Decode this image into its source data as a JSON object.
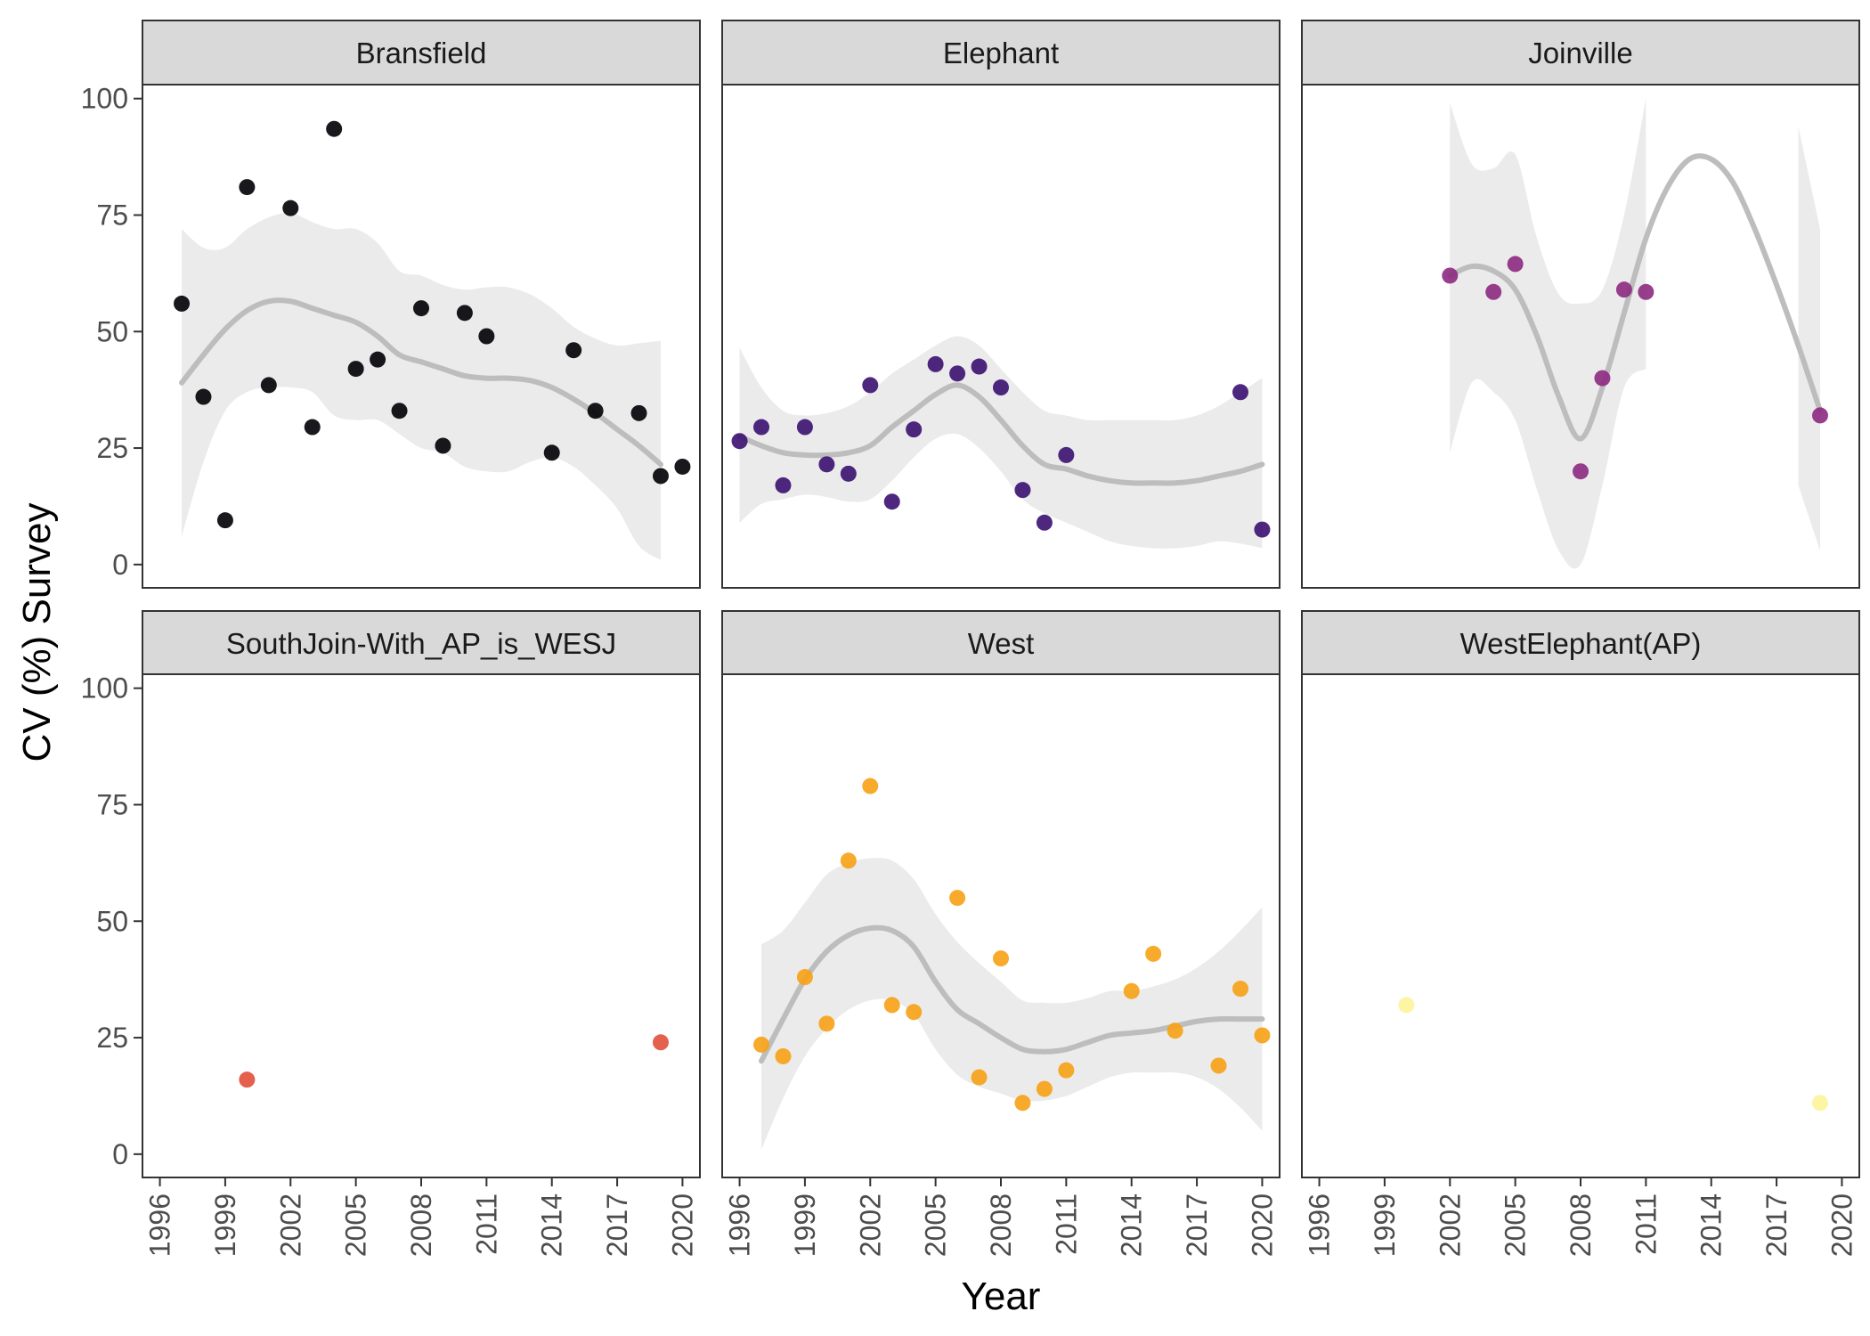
{
  "chart_data": {
    "type": "scatter",
    "xlabel": "Year",
    "ylabel": "CV (%) Survey",
    "xlim": [
      1995.2,
      2020.8
    ],
    "ylim": [
      -5,
      103
    ],
    "x_ticks": [
      1996,
      1999,
      2002,
      2005,
      2008,
      2011,
      2014,
      2017,
      2020
    ],
    "y_ticks": [
      0,
      25,
      50,
      75,
      100
    ],
    "grid": false,
    "legend": "none",
    "smooth_color": "#bdbdbd",
    "band_color": "#ebebeb",
    "panels": [
      {
        "name": "Bransfield",
        "color": "#000004",
        "points": [
          {
            "x": 1997,
            "y": 56,
            "color": "#000004"
          },
          {
            "x": 1998,
            "y": 36,
            "color": "#000004"
          },
          {
            "x": 1999,
            "y": 9.5,
            "color": "#000004"
          },
          {
            "x": 2000,
            "y": 81,
            "color": "#000004"
          },
          {
            "x": 2001,
            "y": 38.5,
            "color": "#000004"
          },
          {
            "x": 2002,
            "y": 76.5,
            "color": "#000004"
          },
          {
            "x": 2003,
            "y": 29.5,
            "color": "#000004"
          },
          {
            "x": 2004,
            "y": 93.5,
            "color": "#000004"
          },
          {
            "x": 2005,
            "y": 42,
            "color": "#000004"
          },
          {
            "x": 2006,
            "y": 44,
            "color": "#000004"
          },
          {
            "x": 2007,
            "y": 33,
            "color": "#000004"
          },
          {
            "x": 2008,
            "y": 55,
            "color": "#000004"
          },
          {
            "x": 2009,
            "y": 25.5,
            "color": "#000004"
          },
          {
            "x": 2010,
            "y": 54,
            "color": "#000004"
          },
          {
            "x": 2011,
            "y": 49,
            "color": "#000004"
          },
          {
            "x": 2014,
            "y": 24,
            "color": "#000004"
          },
          {
            "x": 2015,
            "y": 46,
            "color": "#000004"
          },
          {
            "x": 2016,
            "y": 33,
            "color": "#000004"
          },
          {
            "x": 2018,
            "y": 32.5,
            "color": "#000004"
          },
          {
            "x": 2019,
            "y": 19,
            "color": "#000004"
          },
          {
            "x": 2020,
            "y": 21,
            "color": "#000004"
          }
        ],
        "smooth": [
          {
            "x": 1997,
            "y": 39,
            "lo": 6,
            "hi": 72
          },
          {
            "x": 1998,
            "y": 45,
            "lo": 22,
            "hi": 68
          },
          {
            "x": 1999,
            "y": 50.5,
            "lo": 33,
            "hi": 68
          },
          {
            "x": 2000,
            "y": 54.5,
            "lo": 37,
            "hi": 72
          },
          {
            "x": 2001,
            "y": 56.5,
            "lo": 38,
            "hi": 74.5
          },
          {
            "x": 2002,
            "y": 56.5,
            "lo": 38,
            "hi": 75.5
          },
          {
            "x": 2003,
            "y": 55,
            "lo": 37,
            "hi": 73.5
          },
          {
            "x": 2004,
            "y": 53.5,
            "lo": 32,
            "hi": 72
          },
          {
            "x": 2005,
            "y": 52,
            "lo": 31,
            "hi": 72
          },
          {
            "x": 2006,
            "y": 49,
            "lo": 31,
            "hi": 69
          },
          {
            "x": 2007,
            "y": 45,
            "lo": 28,
            "hi": 63
          },
          {
            "x": 2008,
            "y": 43.5,
            "lo": 25,
            "hi": 62
          },
          {
            "x": 2009,
            "y": 42,
            "lo": 24,
            "hi": 60
          },
          {
            "x": 2010,
            "y": 40.5,
            "lo": 21,
            "hi": 59
          },
          {
            "x": 2011,
            "y": 40,
            "lo": 20,
            "hi": 59.5
          },
          {
            "x": 2012,
            "y": 40,
            "lo": 20,
            "hi": 59.5
          },
          {
            "x": 2013,
            "y": 39.5,
            "lo": 22,
            "hi": 58
          },
          {
            "x": 2014,
            "y": 38,
            "lo": 23,
            "hi": 55
          },
          {
            "x": 2015,
            "y": 35.5,
            "lo": 21,
            "hi": 51
          },
          {
            "x": 2016,
            "y": 32.5,
            "lo": 17,
            "hi": 48.5
          },
          {
            "x": 2017,
            "y": 29,
            "lo": 12,
            "hi": 47
          },
          {
            "x": 2018,
            "y": 25.5,
            "lo": 4,
            "hi": 47.5
          },
          {
            "x": 2019,
            "y": 21.5,
            "lo": 1,
            "hi": 48
          }
        ]
      },
      {
        "name": "Elephant",
        "color": "#3b0f70",
        "points": [
          {
            "x": 1996,
            "y": 26.5,
            "color": "#3b0f70"
          },
          {
            "x": 1997,
            "y": 29.5,
            "color": "#3b0f70"
          },
          {
            "x": 1998,
            "y": 17,
            "color": "#3b0f70"
          },
          {
            "x": 1999,
            "y": 29.5,
            "color": "#3b0f70"
          },
          {
            "x": 2000,
            "y": 21.5,
            "color": "#3b0f70"
          },
          {
            "x": 2001,
            "y": 19.5,
            "color": "#3b0f70"
          },
          {
            "x": 2002,
            "y": 38.5,
            "color": "#3b0f70"
          },
          {
            "x": 2003,
            "y": 13.5,
            "color": "#3b0f70"
          },
          {
            "x": 2004,
            "y": 29,
            "color": "#3b0f70"
          },
          {
            "x": 2005,
            "y": 43,
            "color": "#3b0f70"
          },
          {
            "x": 2006,
            "y": 41,
            "color": "#3b0f70"
          },
          {
            "x": 2007,
            "y": 42.5,
            "color": "#3b0f70"
          },
          {
            "x": 2008,
            "y": 38,
            "color": "#3b0f70"
          },
          {
            "x": 2009,
            "y": 16,
            "color": "#3b0f70"
          },
          {
            "x": 2010,
            "y": 9,
            "color": "#3b0f70"
          },
          {
            "x": 2011,
            "y": 23.5,
            "color": "#3b0f70"
          },
          {
            "x": 2019,
            "y": 37,
            "color": "#3b0f70"
          },
          {
            "x": 2020,
            "y": 7.5,
            "color": "#3b0f70"
          }
        ],
        "smooth": [
          {
            "x": 1996,
            "y": 27.5,
            "lo": 9,
            "hi": 46.5
          },
          {
            "x": 1997,
            "y": 25.5,
            "lo": 13,
            "hi": 38
          },
          {
            "x": 1998,
            "y": 24,
            "lo": 14,
            "hi": 33
          },
          {
            "x": 1999,
            "y": 23.5,
            "lo": 15,
            "hi": 32
          },
          {
            "x": 2000,
            "y": 23.5,
            "lo": 14.5,
            "hi": 32.5
          },
          {
            "x": 2001,
            "y": 24,
            "lo": 13.5,
            "hi": 34
          },
          {
            "x": 2002,
            "y": 25.5,
            "lo": 14,
            "hi": 37
          },
          {
            "x": 2003,
            "y": 29.5,
            "lo": 18,
            "hi": 41
          },
          {
            "x": 2004,
            "y": 33,
            "lo": 23,
            "hi": 44
          },
          {
            "x": 2005,
            "y": 36.5,
            "lo": 27,
            "hi": 47
          },
          {
            "x": 2006,
            "y": 38.5,
            "lo": 28,
            "hi": 49
          },
          {
            "x": 2007,
            "y": 36,
            "lo": 25,
            "hi": 47
          },
          {
            "x": 2008,
            "y": 31,
            "lo": 20,
            "hi": 42
          },
          {
            "x": 2009,
            "y": 25.5,
            "lo": 14,
            "hi": 37
          },
          {
            "x": 2010,
            "y": 21.5,
            "lo": 11,
            "hi": 33
          },
          {
            "x": 2011,
            "y": 20.5,
            "lo": 9,
            "hi": 32
          },
          {
            "x": 2012,
            "y": 19,
            "lo": 7,
            "hi": 31
          },
          {
            "x": 2013,
            "y": 18,
            "lo": 5,
            "hi": 31
          },
          {
            "x": 2014,
            "y": 17.5,
            "lo": 4,
            "hi": 31
          },
          {
            "x": 2015,
            "y": 17.5,
            "lo": 3.5,
            "hi": 31
          },
          {
            "x": 2016,
            "y": 17.5,
            "lo": 3.5,
            "hi": 31
          },
          {
            "x": 2017,
            "y": 18,
            "lo": 4,
            "hi": 32
          },
          {
            "x": 2018,
            "y": 19,
            "lo": 5,
            "hi": 34
          },
          {
            "x": 2019,
            "y": 20,
            "lo": 4.5,
            "hi": 37
          },
          {
            "x": 2020,
            "y": 21.5,
            "lo": 3.5,
            "hi": 40
          }
        ]
      },
      {
        "name": "Joinville",
        "color": "#8c2981",
        "points": [
          {
            "x": 2002,
            "y": 62,
            "color": "#8c2981"
          },
          {
            "x": 2004,
            "y": 58.5,
            "color": "#8c2981"
          },
          {
            "x": 2005,
            "y": 64.5,
            "color": "#8c2981"
          },
          {
            "x": 2008,
            "y": 20,
            "color": "#8c2981"
          },
          {
            "x": 2009,
            "y": 40,
            "color": "#8c2981"
          },
          {
            "x": 2010,
            "y": 59,
            "color": "#8c2981"
          },
          {
            "x": 2011,
            "y": 58.5,
            "color": "#8c2981"
          },
          {
            "x": 2019,
            "y": 32,
            "color": "#8c2981"
          }
        ],
        "smooth": [
          {
            "x": 2002,
            "y": 62,
            "lo": 24,
            "hi": 99
          },
          {
            "x": 2003,
            "y": 64,
            "lo": 39,
            "hi": 86
          },
          {
            "x": 2004,
            "y": 63,
            "lo": 37,
            "hi": 85
          },
          {
            "x": 2005,
            "y": 59,
            "lo": 31,
            "hi": 88
          },
          {
            "x": 2006,
            "y": 49,
            "lo": 16,
            "hi": 70
          },
          {
            "x": 2007,
            "y": 36,
            "lo": 3,
            "hi": 58
          },
          {
            "x": 2008,
            "y": 27,
            "lo": 0,
            "hi": 56
          },
          {
            "x": 2009,
            "y": 38,
            "lo": 17,
            "hi": 59
          },
          {
            "x": 2010,
            "y": 54,
            "lo": 38,
            "hi": 75
          },
          {
            "x": 2011,
            "y": 70,
            "lo": 42,
            "hi": 100
          },
          {
            "x": 2012,
            "y": 81
          },
          {
            "x": 2013,
            "y": 87
          },
          {
            "x": 2014,
            "y": 87
          },
          {
            "x": 2015,
            "y": 82
          },
          {
            "x": 2016,
            "y": 72
          },
          {
            "x": 2017,
            "y": 60
          },
          {
            "x": 2018,
            "y": 47,
            "lo": 17,
            "hi": 94
          },
          {
            "x": 2019,
            "y": 33,
            "lo": 3,
            "hi": 72
          }
        ]
      },
      {
        "name": "SouthJoin-With_AP_is_WESJ",
        "color": "#de4968",
        "points": [
          {
            "x": 2000,
            "y": 16,
            "color": "#e0503a"
          },
          {
            "x": 2019,
            "y": 24,
            "color": "#e0503a"
          }
        ],
        "smooth": []
      },
      {
        "name": "West",
        "color": "#f6a114",
        "points": [
          {
            "x": 1997,
            "y": 23.5,
            "color": "#f6a114"
          },
          {
            "x": 1998,
            "y": 21,
            "color": "#f6a114"
          },
          {
            "x": 1999,
            "y": 38,
            "color": "#f6a114"
          },
          {
            "x": 2000,
            "y": 28,
            "color": "#f6a114"
          },
          {
            "x": 2001,
            "y": 63,
            "color": "#f6a114"
          },
          {
            "x": 2002,
            "y": 79,
            "color": "#f6a114"
          },
          {
            "x": 2003,
            "y": 32,
            "color": "#f6a114"
          },
          {
            "x": 2004,
            "y": 30.5,
            "color": "#f6a114"
          },
          {
            "x": 2006,
            "y": 55,
            "color": "#f6a114"
          },
          {
            "x": 2007,
            "y": 16.5,
            "color": "#f6a114"
          },
          {
            "x": 2008,
            "y": 42,
            "color": "#f6a114"
          },
          {
            "x": 2009,
            "y": 11,
            "color": "#f6a114"
          },
          {
            "x": 2010,
            "y": 14,
            "color": "#f6a114"
          },
          {
            "x": 2011,
            "y": 18,
            "color": "#f6a114"
          },
          {
            "x": 2014,
            "y": 35,
            "color": "#f6a114"
          },
          {
            "x": 2015,
            "y": 43,
            "color": "#f6a114"
          },
          {
            "x": 2016,
            "y": 26.5,
            "color": "#f6a114"
          },
          {
            "x": 2018,
            "y": 19,
            "color": "#f6a114"
          },
          {
            "x": 2019,
            "y": 35.5,
            "color": "#f6a114"
          },
          {
            "x": 2020,
            "y": 25.5,
            "color": "#f6a114"
          }
        ],
        "smooth": [
          {
            "x": 1997,
            "y": 20,
            "lo": 1,
            "hi": 45
          },
          {
            "x": 1998,
            "y": 29,
            "lo": 12,
            "hi": 48
          },
          {
            "x": 1999,
            "y": 37.5,
            "lo": 21,
            "hi": 54
          },
          {
            "x": 2000,
            "y": 43.5,
            "lo": 27,
            "hi": 60
          },
          {
            "x": 2001,
            "y": 47,
            "lo": 31,
            "hi": 62.5
          },
          {
            "x": 2002,
            "y": 48.5,
            "lo": 33,
            "hi": 63.5
          },
          {
            "x": 2003,
            "y": 48,
            "lo": 33,
            "hi": 63
          },
          {
            "x": 2004,
            "y": 44.5,
            "lo": 30,
            "hi": 59
          },
          {
            "x": 2005,
            "y": 37,
            "lo": 22.5,
            "hi": 51.5
          },
          {
            "x": 2006,
            "y": 31,
            "lo": 17,
            "hi": 45.5
          },
          {
            "x": 2007,
            "y": 28,
            "lo": 14.5,
            "hi": 41
          },
          {
            "x": 2008,
            "y": 25,
            "lo": 13,
            "hi": 37
          },
          {
            "x": 2009,
            "y": 22.5,
            "lo": 11.5,
            "hi": 33
          },
          {
            "x": 2010,
            "y": 22,
            "lo": 11.5,
            "hi": 32.5
          },
          {
            "x": 2011,
            "y": 22.5,
            "lo": 12.5,
            "hi": 32.5
          },
          {
            "x": 2012,
            "y": 24,
            "lo": 14.5,
            "hi": 33.5
          },
          {
            "x": 2013,
            "y": 25.5,
            "lo": 16.5,
            "hi": 35
          },
          {
            "x": 2014,
            "y": 26,
            "lo": 17.5,
            "hi": 35
          },
          {
            "x": 2015,
            "y": 26.5,
            "lo": 17.5,
            "hi": 36
          },
          {
            "x": 2016,
            "y": 27.5,
            "lo": 17.5,
            "hi": 37.5
          },
          {
            "x": 2017,
            "y": 28.5,
            "lo": 16.5,
            "hi": 40
          },
          {
            "x": 2018,
            "y": 29,
            "lo": 14,
            "hi": 43.5
          },
          {
            "x": 2019,
            "y": 29,
            "lo": 10,
            "hi": 48
          },
          {
            "x": 2020,
            "y": 29,
            "lo": 5,
            "hi": 53
          }
        ]
      },
      {
        "name": "WestElephant(AP)",
        "color": "#fcfdbf",
        "points": [
          {
            "x": 2000,
            "y": 32,
            "color": "#fcf49a"
          },
          {
            "x": 2019,
            "y": 11,
            "color": "#fcf49a"
          }
        ],
        "smooth": []
      }
    ]
  }
}
